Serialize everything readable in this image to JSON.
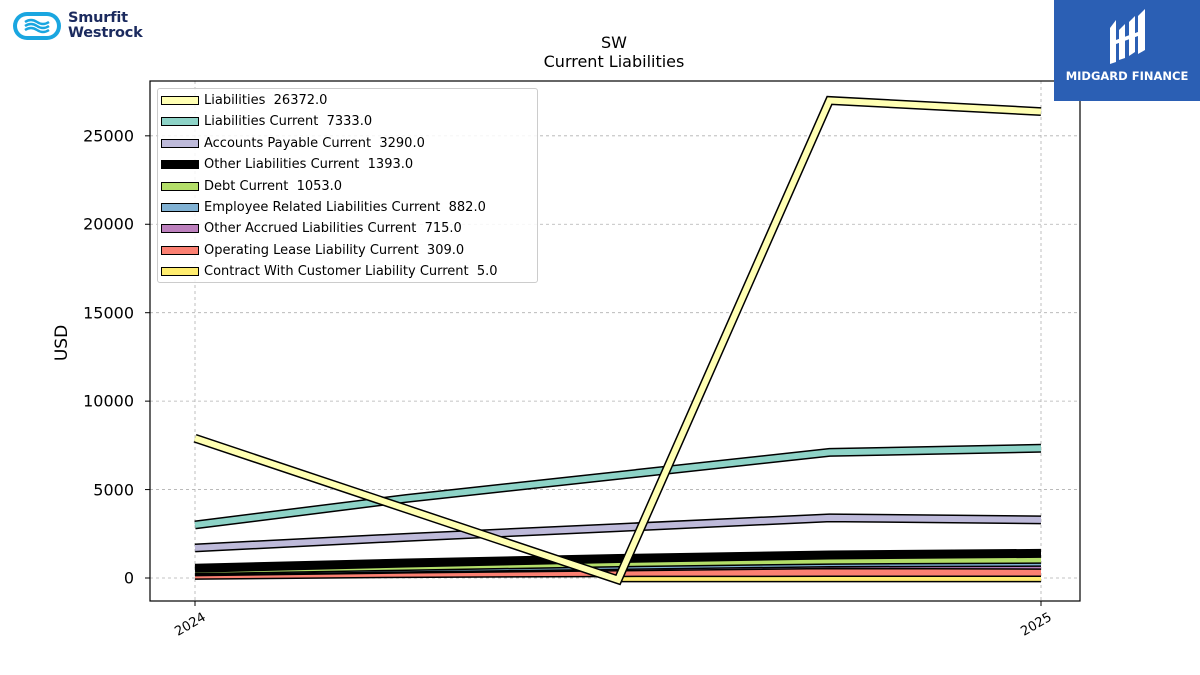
{
  "brand": {
    "name_line1": "Smurfit",
    "name_line2": "Westrock",
    "logo_color": "#1aa6e0"
  },
  "badge": {
    "text": "MIDGARD FINANCE",
    "color": "#2b5fb4"
  },
  "chart_data": {
    "type": "line",
    "title": "SW",
    "subtitle": "Current  Liabilities",
    "ylabel": "USD",
    "xlabel": "",
    "x_tick_labels": [
      "2024",
      "2025"
    ],
    "x": [
      "2024-01",
      "2024-04",
      "2024-07",
      "2024-10",
      "2025-01"
    ],
    "y_ticks": [
      0,
      5000,
      10000,
      15000,
      20000,
      25000
    ],
    "ylim": [
      -1300,
      28100
    ],
    "grid": true,
    "legend_position": "upper-left",
    "series": [
      {
        "name": "Liabilities",
        "label": "Liabilities  26372.0",
        "color": "#ffffb3",
        "values": [
          7900,
          3900,
          -100,
          27000,
          26372
        ]
      },
      {
        "name": "Liabilities Current",
        "label": "Liabilities Current  7333.0",
        "color": "#8dd3c7",
        "values": [
          3000,
          4500,
          5800,
          7100,
          7333
        ]
      },
      {
        "name": "Accounts Payable Current",
        "label": "Accounts Payable Current  3290.0",
        "color": "#bebada",
        "values": [
          1700,
          2300,
          2850,
          3400,
          3290
        ]
      },
      {
        "name": "Other Liabilities Current",
        "label": "Other Liabilities Current  1393.0",
        "color": "#000000",
        "values": [
          550,
          850,
          1100,
          1300,
          1393
        ]
      },
      {
        "name": "Debt Current",
        "label": "Debt Current  1053.0",
        "color": "#b3de69",
        "values": [
          450,
          650,
          850,
          1000,
          1053
        ]
      },
      {
        "name": "Employee Related Liabilities Current",
        "label": "Employee Related Liabilities Current  882.0",
        "color": "#80b1d3",
        "values": [
          400,
          550,
          700,
          850,
          882
        ]
      },
      {
        "name": "Other Accrued Liabilities Current",
        "label": "Other Accrued Liabilities Current  715.0",
        "color": "#bc80bd",
        "values": [
          350,
          500,
          620,
          750,
          715
        ]
      },
      {
        "name": "Operating Lease Liability Current",
        "label": "Operating Lease Liability Current  309.0",
        "color": "#fb8072",
        "values": [
          150,
          250,
          300,
          310,
          309
        ]
      },
      {
        "name": "Contract With Customer Liability Current",
        "label": "Contract With Customer Liability Current  5.0",
        "color": "#ffed6f",
        "values": [
          null,
          null,
          5,
          5,
          5
        ]
      }
    ]
  }
}
